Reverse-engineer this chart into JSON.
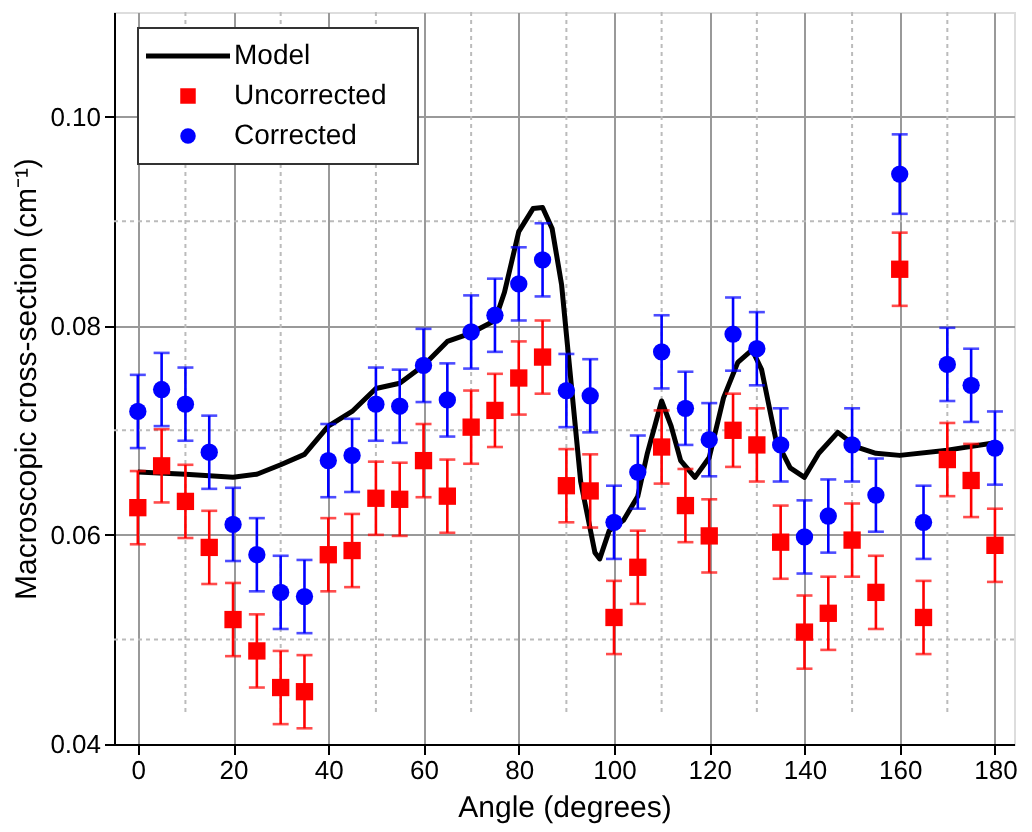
{
  "chart_data": {
    "type": "scatter",
    "xlabel": "Angle (degrees)",
    "ylabel": "Macroscopic cross-section (cm⁻¹)",
    "xlim": [
      -5,
      184
    ],
    "ylim": [
      0.04,
      0.11
    ],
    "xticks": [
      0,
      20,
      40,
      60,
      80,
      100,
      120,
      140,
      160,
      180
    ],
    "yticks": [
      {
        "value": 0.04,
        "label": "0.04"
      },
      {
        "value": 0.06,
        "label": "0.06"
      },
      {
        "value": 0.08,
        "label": "0.08"
      },
      {
        "value": 0.1,
        "label": "0.10"
      }
    ],
    "grid": true,
    "legend": "top left",
    "series": [
      {
        "name": "Model",
        "type": "line",
        "color": "#000000",
        "marker": "none",
        "line_style": "solid",
        "x": [
          0,
          10,
          20,
          25,
          30,
          35,
          40,
          45,
          50,
          55,
          60,
          65,
          70,
          75,
          77,
          80,
          83,
          85,
          87,
          89,
          91,
          93,
          96,
          97,
          99,
          102,
          105,
          107,
          110,
          112,
          114,
          117,
          120,
          123,
          126,
          129,
          131,
          134,
          137,
          140,
          143,
          147,
          151,
          155,
          160,
          170,
          180
        ],
        "values": [
          0.066,
          0.0658,
          0.0655,
          0.0658,
          0.0667,
          0.0677,
          0.0704,
          0.0718,
          0.074,
          0.0745,
          0.0762,
          0.0785,
          0.0793,
          0.0805,
          0.0832,
          0.089,
          0.0912,
          0.0913,
          0.0893,
          0.0839,
          0.0745,
          0.0651,
          0.0583,
          0.0577,
          0.0604,
          0.0614,
          0.0637,
          0.0678,
          0.0728,
          0.0704,
          0.0671,
          0.0655,
          0.0674,
          0.0731,
          0.0765,
          0.0777,
          0.0758,
          0.0691,
          0.0664,
          0.0655,
          0.0678,
          0.0698,
          0.0684,
          0.0678,
          0.0676,
          0.0681,
          0.0688
        ]
      },
      {
        "name": "Uncorrected",
        "color": "#ff0000",
        "marker": "square",
        "x": [
          0,
          5,
          10,
          15,
          20,
          25,
          30,
          35,
          40,
          45,
          50,
          55,
          60,
          65,
          70,
          75,
          80,
          85,
          90,
          95,
          100,
          105,
          110,
          115,
          120,
          125,
          130,
          135,
          140,
          145,
          150,
          155,
          160,
          165,
          170,
          175,
          180
        ],
        "values": [
          0.0626,
          0.0666,
          0.0632,
          0.0588,
          0.0519,
          0.0489,
          0.0454,
          0.045,
          0.0581,
          0.0585,
          0.0635,
          0.0634,
          0.0671,
          0.0637,
          0.0703,
          0.0719,
          0.075,
          0.077,
          0.0647,
          0.0642,
          0.0521,
          0.0569,
          0.0684,
          0.0628,
          0.0599,
          0.07,
          0.0686,
          0.0593,
          0.0507,
          0.0525,
          0.0595,
          0.0545,
          0.0854,
          0.0521,
          0.0672,
          0.0652,
          0.059
        ],
        "errors": [
          0.0035,
          0.0035,
          0.0035,
          0.0035,
          0.0035,
          0.0035,
          0.0035,
          0.0035,
          0.0035,
          0.0035,
          0.0035,
          0.0035,
          0.0035,
          0.0035,
          0.0035,
          0.0035,
          0.0035,
          0.0035,
          0.0035,
          0.0035,
          0.0035,
          0.0035,
          0.0035,
          0.0035,
          0.0035,
          0.0035,
          0.0035,
          0.0035,
          0.0035,
          0.0035,
          0.0035,
          0.0035,
          0.0035,
          0.0035,
          0.0035,
          0.0035,
          0.0035
        ]
      },
      {
        "name": "Corrected",
        "color": "#0000ff",
        "marker": "circle",
        "x": [
          0,
          5,
          10,
          15,
          20,
          25,
          30,
          35,
          40,
          45,
          50,
          55,
          60,
          65,
          70,
          75,
          80,
          85,
          90,
          95,
          100,
          105,
          110,
          115,
          120,
          125,
          130,
          135,
          140,
          145,
          150,
          155,
          160,
          165,
          170,
          175,
          180
        ],
        "values": [
          0.0718,
          0.0739,
          0.0725,
          0.0679,
          0.061,
          0.0581,
          0.0545,
          0.0541,
          0.0671,
          0.0676,
          0.0725,
          0.0723,
          0.0762,
          0.0729,
          0.0794,
          0.081,
          0.084,
          0.0863,
          0.0738,
          0.0733,
          0.0612,
          0.066,
          0.0775,
          0.0721,
          0.0691,
          0.0792,
          0.0778,
          0.0686,
          0.0598,
          0.0618,
          0.0686,
          0.0638,
          0.0945,
          0.0612,
          0.0763,
          0.0743,
          0.0683
        ],
        "errors": [
          0.0035,
          0.0035,
          0.0035,
          0.0035,
          0.0035,
          0.0035,
          0.0035,
          0.0035,
          0.0035,
          0.0035,
          0.0035,
          0.0035,
          0.0035,
          0.0035,
          0.0035,
          0.0035,
          0.0035,
          0.0035,
          0.0035,
          0.0035,
          0.0035,
          0.0035,
          0.0035,
          0.0035,
          0.0035,
          0.0035,
          0.0035,
          0.0035,
          0.0035,
          0.0035,
          0.0035,
          0.0035,
          0.0038,
          0.0035,
          0.0035,
          0.0035,
          0.0035
        ]
      }
    ]
  }
}
